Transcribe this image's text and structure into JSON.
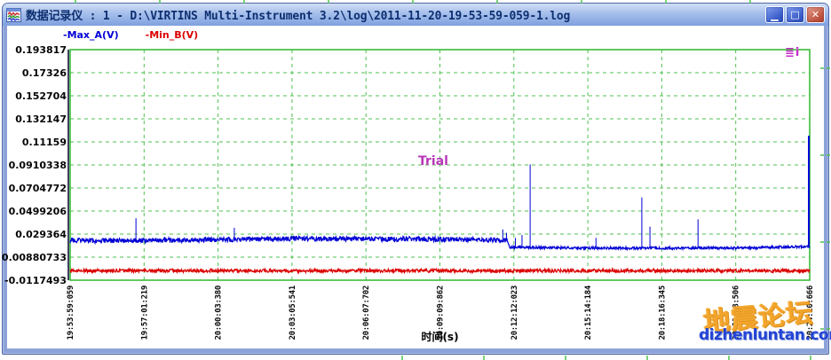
{
  "window": {
    "title": "数据记录仪 : 1 - D:\\VIRTINS Multi-Instrument 3.2\\log\\2011-11-20-19-53-59-059-1.log",
    "icon": "waveform-app-icon",
    "controls": [
      {
        "name": "minimize",
        "glyph": "▁"
      },
      {
        "name": "maximize",
        "glyph": "□"
      },
      {
        "name": "close",
        "glyph": "✕"
      }
    ]
  },
  "legend": [
    {
      "label": "-Max_A(V)",
      "color": "#0000d6"
    },
    {
      "label": "-Min_B(V)",
      "color": "#dc0000"
    }
  ],
  "watermarks": {
    "trial": "Trial",
    "corner": "≣i",
    "forum_name": "地震论坛",
    "forum_url": "dizhenluntan.com"
  },
  "chart_data": {
    "type": "line",
    "title": "",
    "xlabel": "时间(s)",
    "ylabel": "",
    "grid": "dashed",
    "grid_color": "#4fc24f",
    "border_color": "#2db82d",
    "axis_line_color": "#10103a",
    "legend_position": "top-left",
    "y_range": [
      -0.0117493,
      0.193817
    ],
    "y_ticks": [
      "0.193817",
      "0.17326",
      "0.152704",
      "0.132147",
      "0.11159",
      "0.0910338",
      "0.0704772",
      "0.0499206",
      "0.029364",
      "0.00880733",
      "-0.0117493"
    ],
    "x_ticks": [
      "19:53:59:059",
      "19:57:01:219",
      "20:00:03:380",
      "20:03:05:541",
      "20:06:07:702",
      "20:09:09:862",
      "20:12:12:023",
      "20:15:14:184",
      "20:18:16:345",
      "20:21:18:506",
      "20:24:20:666"
    ],
    "series": [
      {
        "name": "Max_A(V)",
        "color": "#0000d6",
        "baseline": [
          [
            0,
            0.0235
          ],
          [
            0.12,
            0.0238
          ],
          [
            0.3,
            0.0252
          ],
          [
            0.48,
            0.025
          ],
          [
            0.57,
            0.024
          ],
          [
            0.591,
            0.0235
          ],
          [
            0.594,
            0.0175
          ],
          [
            0.75,
            0.0168
          ],
          [
            0.92,
            0.017
          ],
          [
            1,
            0.0185
          ]
        ],
        "noise": [
          [
            0,
            0.0022
          ],
          [
            0.591,
            0.0022
          ],
          [
            0.594,
            0.0011
          ],
          [
            1,
            0.0011
          ]
        ],
        "spikes": [
          [
            0.089,
            0.0435
          ],
          [
            0.222,
            0.035
          ],
          [
            0.585,
            0.0335
          ],
          [
            0.59,
            0.0305
          ],
          [
            0.602,
            0.026
          ],
          [
            0.611,
            0.0285
          ],
          [
            0.622,
            0.0915
          ],
          [
            0.711,
            0.026
          ],
          [
            0.773,
            0.062
          ],
          [
            0.784,
            0.036
          ],
          [
            0.849,
            0.0425
          ],
          [
            0.9988,
            0.117
          ]
        ]
      },
      {
        "name": "Min_B(V)",
        "color": "#dc0000",
        "baseline": [
          [
            0,
            -0.0033
          ],
          [
            1,
            -0.0033
          ]
        ],
        "noise": [
          [
            0,
            0.0015
          ],
          [
            1,
            0.0015
          ]
        ],
        "spikes": []
      }
    ]
  }
}
